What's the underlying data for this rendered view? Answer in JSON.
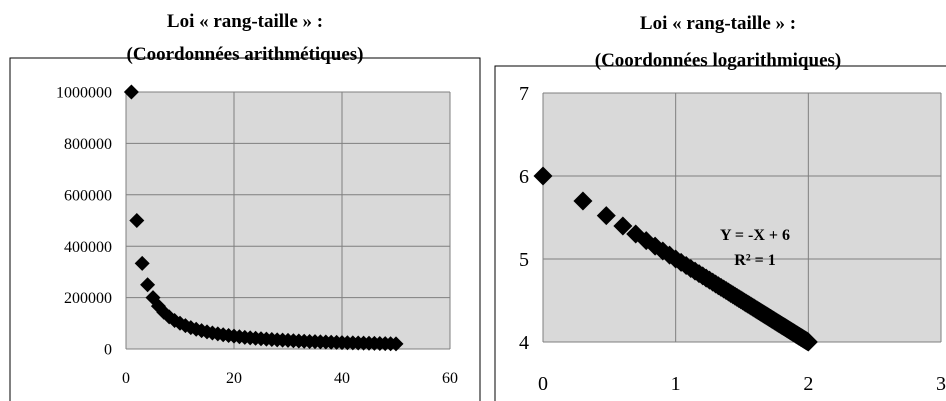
{
  "chart_data": [
    {
      "type": "scatter",
      "title_lines": [
        "Loi « rang-taille » :",
        "(Coordonnées arithmétiques)"
      ],
      "xlim": [
        0,
        60
      ],
      "ylim": [
        0,
        1000000
      ],
      "x_ticks": [
        0,
        20,
        40,
        60
      ],
      "y_ticks": [
        0,
        200000,
        400000,
        600000,
        800000,
        1000000
      ],
      "x_tick_labels": [
        "0",
        "20",
        "40",
        "60"
      ],
      "y_tick_labels": [
        "0",
        "200000",
        "400000",
        "600000",
        "800000",
        "1000000"
      ],
      "grid": true,
      "marker": "diamond",
      "marker_color": "#000000",
      "plot_background": "#d9d9d9",
      "series": [
        {
          "x": [
            1,
            2,
            3,
            4,
            5,
            6,
            7,
            8,
            9,
            10,
            11,
            12,
            13,
            14,
            15,
            16,
            17,
            18,
            19,
            20,
            21,
            22,
            23,
            24,
            25,
            26,
            27,
            28,
            29,
            30,
            31,
            32,
            33,
            34,
            35,
            36,
            37,
            38,
            39,
            40,
            41,
            42,
            43,
            44,
            45,
            46,
            47,
            48,
            49,
            50
          ],
          "y": [
            1000000,
            500000,
            333333,
            250000,
            200000,
            166667,
            142857,
            125000,
            111111,
            100000,
            90909,
            83333,
            76923,
            71429,
            66667,
            62500,
            58824,
            55556,
            52632,
            50000,
            47619,
            45455,
            43478,
            41667,
            40000,
            38462,
            37037,
            35714,
            34483,
            33333,
            32258,
            31250,
            30303,
            29412,
            28571,
            27778,
            27027,
            26316,
            25641,
            25000,
            24390,
            23810,
            23256,
            22727,
            22222,
            21739,
            21277,
            20833,
            20408,
            20000
          ]
        }
      ]
    },
    {
      "type": "scatter",
      "title_lines": [
        "Loi « rang-taille » :",
        "(Coordonnées logarithmiques)"
      ],
      "xlim": [
        0,
        3
      ],
      "ylim": [
        4,
        7
      ],
      "x_ticks": [
        0,
        1,
        2,
        3
      ],
      "y_ticks": [
        4,
        5,
        6,
        7
      ],
      "x_tick_labels": [
        "0",
        "1",
        "2",
        "3"
      ],
      "y_tick_labels": [
        "4",
        "5",
        "6",
        "7"
      ],
      "grid": true,
      "marker": "diamond",
      "marker_color": "#000000",
      "plot_background": "#d9d9d9",
      "annotation_lines": [
        "Y = -X + 6",
        "R² = 1"
      ],
      "series": [
        {
          "x": [
            0,
            0.301,
            0.477,
            0.602,
            0.699,
            0.778,
            0.845,
            0.903,
            0.954,
            1,
            1.041,
            1.079,
            1.114,
            1.146,
            1.176,
            1.204,
            1.23,
            1.255,
            1.279,
            1.301,
            1.322,
            1.342,
            1.362,
            1.38,
            1.398,
            1.415,
            1.431,
            1.447,
            1.462,
            1.477,
            1.491,
            1.505,
            1.519,
            1.531,
            1.544,
            1.556,
            1.568,
            1.58,
            1.591,
            1.602,
            1.613,
            1.623,
            1.633,
            1.643,
            1.653,
            1.663,
            1.672,
            1.681,
            1.69,
            1.699,
            1.708,
            1.716,
            1.724,
            1.732,
            1.74,
            1.748,
            1.756,
            1.763,
            1.771,
            1.778,
            1.785,
            1.792,
            1.799,
            1.806,
            1.813,
            1.82,
            1.826,
            1.833,
            1.839,
            1.845,
            1.851,
            1.857,
            1.863,
            1.869,
            1.875,
            1.881,
            1.886,
            1.892,
            1.898,
            1.903,
            1.908,
            1.914,
            1.919,
            1.924,
            1.929,
            1.934,
            1.94,
            1.944,
            1.949,
            1.954,
            1.959,
            1.964,
            1.968,
            1.973,
            1.978,
            1.982,
            1.987,
            1.991,
            1.996,
            2
          ],
          "y": [
            6,
            5.699,
            5.523,
            5.398,
            5.301,
            5.222,
            5.155,
            5.097,
            5.046,
            5,
            4.959,
            4.921,
            4.886,
            4.854,
            4.824,
            4.796,
            4.77,
            4.745,
            4.721,
            4.699,
            4.678,
            4.658,
            4.638,
            4.62,
            4.602,
            4.585,
            4.569,
            4.553,
            4.538,
            4.523,
            4.509,
            4.495,
            4.481,
            4.469,
            4.456,
            4.444,
            4.432,
            4.42,
            4.409,
            4.398,
            4.387,
            4.377,
            4.367,
            4.357,
            4.347,
            4.337,
            4.328,
            4.319,
            4.31,
            4.301,
            4.292,
            4.284,
            4.276,
            4.268,
            4.26,
            4.252,
            4.244,
            4.237,
            4.229,
            4.222,
            4.215,
            4.208,
            4.201,
            4.194,
            4.187,
            4.18,
            4.174,
            4.167,
            4.161,
            4.155,
            4.149,
            4.143,
            4.137,
            4.131,
            4.125,
            4.119,
            4.114,
            4.108,
            4.102,
            4.097,
            4.092,
            4.086,
            4.081,
            4.076,
            4.071,
            4.066,
            4.06,
            4.056,
            4.051,
            4.046,
            4.041,
            4.036,
            4.032,
            4.027,
            4.022,
            4.018,
            4.013,
            4.009,
            4.004,
            4
          ]
        }
      ]
    }
  ]
}
